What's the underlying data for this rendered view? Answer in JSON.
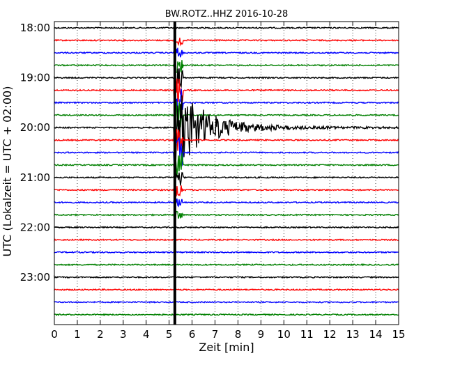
{
  "chart_data": {
    "type": "line",
    "title": "BW.ROTZ..HHZ 2016-10-28",
    "xlabel": "Zeit  [min]",
    "ylabel": "UTC (Lokalzeit = UTC + 02:00)",
    "xlim": [
      0,
      15
    ],
    "x_ticks": [
      "0",
      "1",
      "2",
      "3",
      "4",
      "5",
      "6",
      "7",
      "8",
      "9",
      "10",
      "11",
      "12",
      "13",
      "14",
      "15"
    ],
    "y_ticks": [
      "18:00",
      "19:00",
      "20:00",
      "21:00",
      "22:00",
      "23:00"
    ],
    "trace_colors": [
      "#000000",
      "#ff0000",
      "#0000ff",
      "#008000"
    ],
    "trace_count": 24,
    "grid": true,
    "events": [
      {
        "trace_index": 8,
        "onset_min": 5.25,
        "decay_end_min": 10.5,
        "max_amplitude_traces": 3.5,
        "description": "earthquake"
      }
    ]
  }
}
